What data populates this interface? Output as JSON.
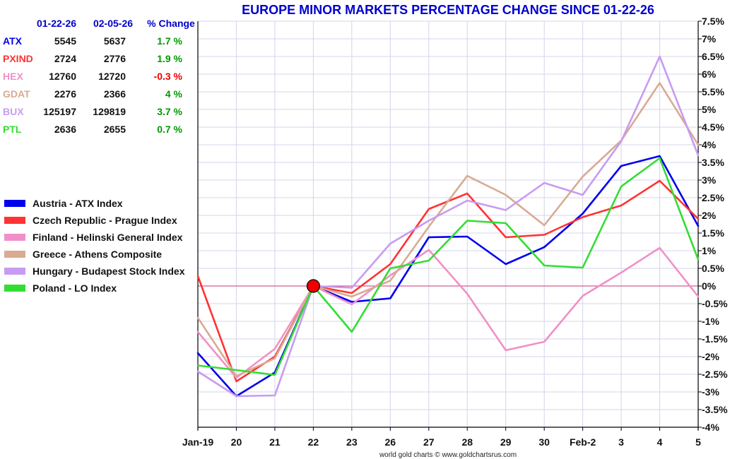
{
  "chart_data": {
    "type": "line",
    "title": "EUROPE MINOR MARKETS PERCENTAGE CHANGE SINCE 01-22-26",
    "footer": "world gold charts © www.goldchartsrus.com",
    "x": [
      "Jan-19",
      "20",
      "21",
      "22",
      "23",
      "26",
      "27",
      "28",
      "29",
      "30",
      "Feb-2",
      "3",
      "4",
      "5"
    ],
    "ylim": [
      -4,
      7.5
    ],
    "yticks": [
      7.5,
      7,
      6.5,
      6,
      5.5,
      5,
      4.5,
      4,
      3.5,
      3,
      2.5,
      2,
      1.5,
      1,
      0.5,
      0,
      -0.5,
      -1,
      -1.5,
      -2,
      -2.5,
      -3,
      -3.5,
      -4
    ],
    "ytick_labels": [
      "7.5%",
      "7%",
      "6.5%",
      "6%",
      "5.5%",
      "5%",
      "4.5%",
      "4%",
      "3.5%",
      "3%",
      "2.5%",
      "2%",
      "1.5%",
      "1%",
      "0.5%",
      "0%",
      "-0.5%",
      "-1%",
      "-1.5%",
      "-2%",
      "-2.5%",
      "-3%",
      "-3.5%",
      "-4%"
    ],
    "grid": true,
    "baseline_marker": {
      "x": "22",
      "y": 0,
      "color": "#ee0000"
    },
    "legend_position": "left-middle",
    "series": [
      {
        "name": "Austria - ATX Index",
        "color": "#0000ee",
        "values": [
          -1.9,
          -3.12,
          -2.45,
          0,
          -0.45,
          -0.35,
          1.38,
          1.4,
          0.62,
          1.1,
          2.05,
          3.4,
          3.68,
          1.7
        ]
      },
      {
        "name": "Czech Republic - Prague Index",
        "color": "#ff3333",
        "values": [
          0.28,
          -2.7,
          -2.0,
          0,
          -0.2,
          0.62,
          2.18,
          2.62,
          1.38,
          1.45,
          1.95,
          2.28,
          2.98,
          1.9
        ]
      },
      {
        "name": "Finland - Helinski General Index",
        "color": "#f090c8",
        "values": [
          -1.3,
          -2.6,
          -1.78,
          0,
          -0.52,
          0.3,
          1.02,
          -0.22,
          -1.82,
          -1.58,
          -0.28,
          0.38,
          1.08,
          -0.3
        ]
      },
      {
        "name": "Greece - Athens Composite",
        "color": "#d8ab92",
        "values": [
          -0.9,
          -2.55,
          -2.05,
          0,
          -0.3,
          0.15,
          1.68,
          3.12,
          2.58,
          1.72,
          3.1,
          4.12,
          5.75,
          4.0
        ]
      },
      {
        "name": "Hungary - Budapest Stock Index",
        "color": "#c89bf0",
        "values": [
          -2.42,
          -3.12,
          -3.1,
          0,
          -0.05,
          1.2,
          1.85,
          2.42,
          2.15,
          2.92,
          2.58,
          4.1,
          6.5,
          3.7
        ]
      },
      {
        "name": "Poland - LO Index",
        "color": "#33dd33",
        "values": [
          -2.25,
          -2.38,
          -2.52,
          0,
          -1.3,
          0.5,
          0.72,
          1.85,
          1.78,
          0.58,
          0.52,
          2.82,
          3.62,
          0.75
        ]
      }
    ],
    "table": {
      "headers": [
        "01-22-26",
        "02-05-26",
        "% Change"
      ],
      "header_color": "#0000cc",
      "rows": [
        {
          "ticker": "ATX",
          "color": "#0000ee",
          "v1": "5545",
          "v2": "5637",
          "change": "1.7 %",
          "change_color": "#009900"
        },
        {
          "ticker": "PXIND",
          "color": "#ff3333",
          "v1": "2724",
          "v2": "2776",
          "change": "1.9 %",
          "change_color": "#009900"
        },
        {
          "ticker": "HEX",
          "color": "#f090c8",
          "v1": "12760",
          "v2": "12720",
          "change": "-0.3 %",
          "change_color": "#ee0000"
        },
        {
          "ticker": "GDAT",
          "color": "#d8ab92",
          "v1": "2276",
          "v2": "2366",
          "change": "4 %",
          "change_color": "#009900"
        },
        {
          "ticker": "BUX",
          "color": "#c89bf0",
          "v1": "125197",
          "v2": "129819",
          "change": "3.7 %",
          "change_color": "#009900"
        },
        {
          "ticker": "PTL",
          "color": "#33dd33",
          "v1": "2636",
          "v2": "2655",
          "change": "0.7 %",
          "change_color": "#009900"
        }
      ]
    }
  }
}
